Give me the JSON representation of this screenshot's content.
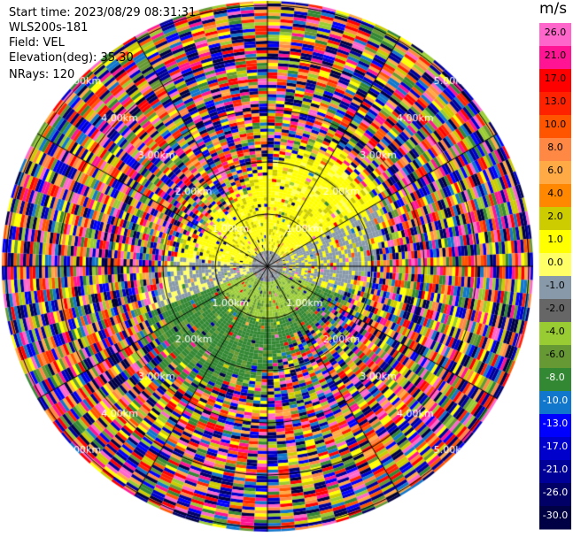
{
  "info": {
    "start_time": "Start time: 2023/08/29 08:31:31",
    "station": "WLS200s-181",
    "field": "Field: VEL",
    "elevation": "Elevation(deg): 35.30",
    "nrays": "NRays: 120"
  },
  "chart_data": {
    "type": "heatmap",
    "subtype": "ppi-polar",
    "nrays": 120,
    "range_rings_km": [
      1.0,
      2.0,
      3.0,
      4.0,
      5.0
    ],
    "range_labels": [
      "1.00km",
      "2.00km",
      "3.00km",
      "4.00km",
      "5.00km"
    ],
    "colorbar": {
      "unit": "m/s",
      "ticks": [
        "26.0",
        "21.0",
        "17.0",
        "13.0",
        "10.0",
        "8.0",
        "6.0",
        "4.0",
        "2.0",
        "1.0",
        "0.0",
        "-1.0",
        "-2.0",
        "-4.0",
        "-6.0",
        "-8.0",
        "-10.0",
        "-13.0",
        "-17.0",
        "-21.0",
        "-26.0",
        "-30.0"
      ],
      "colors": [
        "#ff66cc",
        "#ff1493",
        "#ff0000",
        "#ff2200",
        "#ff5500",
        "#ff8844",
        "#ffaa44",
        "#ff8800",
        "#cccc00",
        "#ffff00",
        "#ffff66",
        "#8899aa",
        "#666666",
        "#99cc33",
        "#669933",
        "#338833",
        "#1177cc",
        "#0000ff",
        "#0000cc",
        "#000099",
        "#000066",
        "#000044"
      ]
    }
  }
}
